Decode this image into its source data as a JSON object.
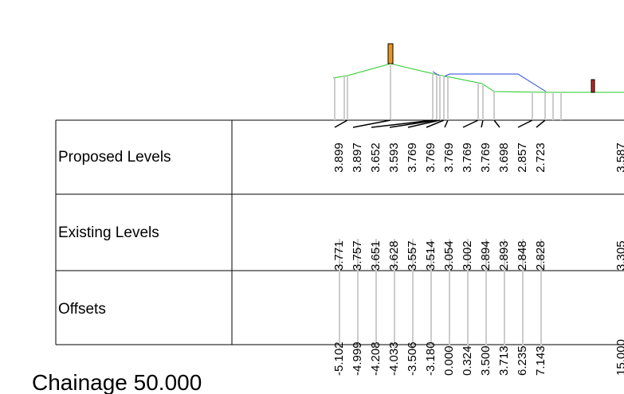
{
  "rows": [
    "Proposed Levels",
    "Existing Levels",
    "Offsets"
  ],
  "columns": [
    {
      "proposed": "3.899",
      "existing": "3.771",
      "offset": "-5.102"
    },
    {
      "proposed": "3.897",
      "existing": "3.757",
      "offset": "-4.999"
    },
    {
      "proposed": "3.652",
      "existing": "3.651",
      "offset": "-4.208"
    },
    {
      "proposed": "3.593",
      "existing": "3.628",
      "offset": "-4.033"
    },
    {
      "proposed": "3.769",
      "existing": "3.557",
      "offset": "-3.506"
    },
    {
      "proposed": "3.769",
      "existing": "3.514",
      "offset": "-3.180"
    },
    {
      "proposed": "3.769",
      "existing": "3.054",
      "offset": "0.000"
    },
    {
      "proposed": "3.769",
      "existing": "3.002",
      "offset": "0.324"
    },
    {
      "proposed": "3.769",
      "existing": "2.894",
      "offset": "3.500"
    },
    {
      "proposed": "3.698",
      "existing": "2.893",
      "offset": "3.713"
    },
    {
      "proposed": "2.857",
      "existing": "2.848",
      "offset": "6.235"
    },
    {
      "proposed": "2.723",
      "existing": "2.828",
      "offset": "7.143"
    }
  ],
  "edge_column": {
    "proposed": "3.587",
    "existing": "3.305",
    "offset": "15.000"
  },
  "chainage": "Chainage  50.000"
}
